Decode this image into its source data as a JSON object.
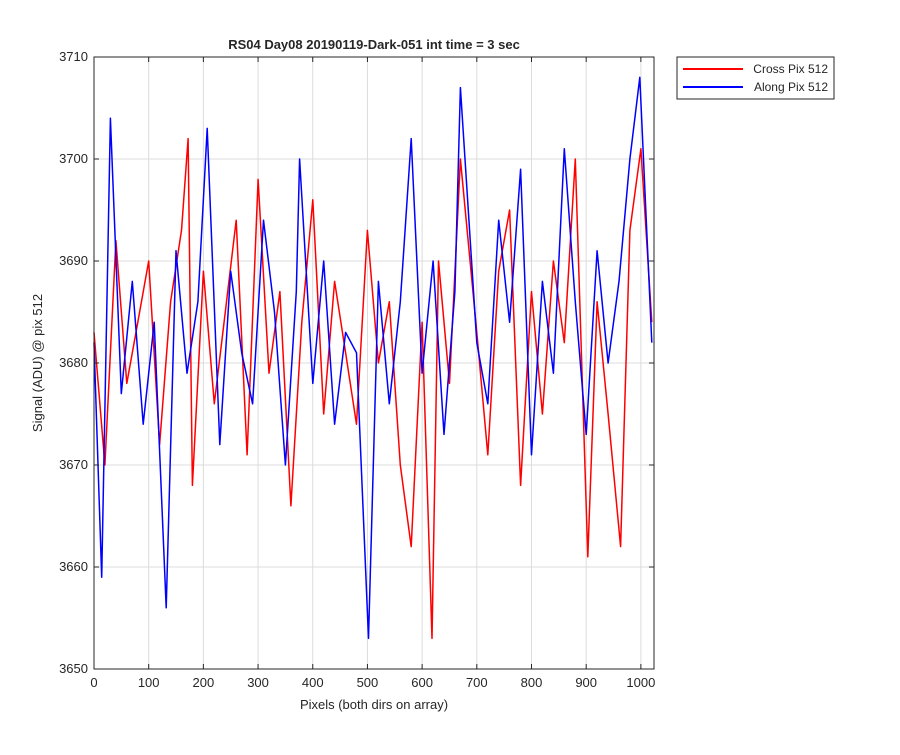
{
  "chart_data": {
    "type": "line",
    "title": "RS04 Day08 20190119-Dark-051 int time = 3 sec",
    "xlabel": "Pixels (both dirs on array)",
    "ylabel": "Signal (ADU) @ pix 512",
    "xlim": [
      0,
      1024
    ],
    "ylim": [
      3650,
      3710
    ],
    "xticks": [
      0,
      100,
      200,
      300,
      400,
      500,
      600,
      700,
      800,
      900,
      1000
    ],
    "yticks": [
      3650,
      3660,
      3670,
      3680,
      3690,
      3700,
      3710
    ],
    "grid": true,
    "legend_position": "outside-top-right",
    "series": [
      {
        "name": "Cross Pix 512",
        "color": "#ff0000",
        "x": [
          0,
          20,
          40,
          60,
          80,
          100,
          120,
          140,
          160,
          172,
          180,
          200,
          220,
          240,
          260,
          280,
          300,
          320,
          340,
          360,
          380,
          400,
          420,
          440,
          460,
          480,
          500,
          520,
          540,
          560,
          580,
          600,
          618,
          630,
          650,
          670,
          700,
          720,
          740,
          760,
          780,
          800,
          820,
          840,
          860,
          880,
          903,
          920,
          940,
          963,
          980,
          1000,
          1020
        ],
        "y": [
          3683,
          3670,
          3692,
          3678,
          3684,
          3690,
          3672,
          3686,
          3693,
          3702,
          3668,
          3689,
          3676,
          3685,
          3694,
          3671,
          3698,
          3679,
          3687,
          3666,
          3684,
          3696,
          3675,
          3688,
          3681,
          3674,
          3693,
          3680,
          3686,
          3670,
          3662,
          3684,
          3653,
          3690,
          3678,
          3700,
          3683,
          3671,
          3689,
          3695,
          3668,
          3687,
          3675,
          3690,
          3682,
          3700,
          3661,
          3686,
          3675,
          3662,
          3693,
          3701,
          3684
        ]
      },
      {
        "name": "Along Pix 512",
        "color": "#0000ff",
        "x": [
          0,
          14,
          30,
          50,
          70,
          90,
          110,
          132,
          150,
          170,
          190,
          207,
          230,
          250,
          270,
          290,
          310,
          330,
          350,
          370,
          376,
          400,
          420,
          440,
          460,
          480,
          502,
          520,
          540,
          560,
          580,
          600,
          620,
          640,
          660,
          670,
          700,
          720,
          740,
          760,
          780,
          800,
          820,
          840,
          860,
          880,
          900,
          920,
          940,
          960,
          980,
          998,
          1020
        ],
        "y": [
          3682,
          3659,
          3704,
          3677,
          3688,
          3674,
          3684,
          3656,
          3691,
          3679,
          3686,
          3703,
          3672,
          3689,
          3681,
          3676,
          3694,
          3685,
          3670,
          3687,
          3700,
          3678,
          3690,
          3674,
          3683,
          3681,
          3653,
          3688,
          3676,
          3686,
          3702,
          3679,
          3690,
          3673,
          3687,
          3707,
          3682,
          3676,
          3694,
          3684,
          3699,
          3671,
          3688,
          3679,
          3701,
          3686,
          3673,
          3691,
          3680,
          3688,
          3700,
          3708,
          3682
        ]
      }
    ]
  }
}
